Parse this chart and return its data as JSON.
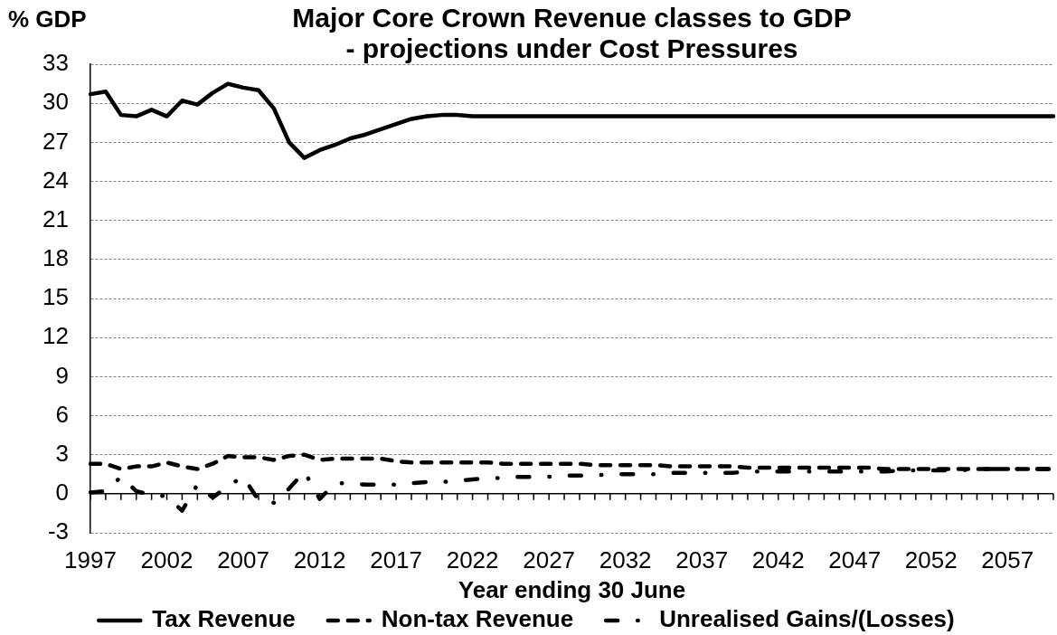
{
  "chart_data": {
    "type": "line",
    "title": "Major Core Crown Revenue classes to GDP",
    "subtitle": "- projections under Cost Pressures",
    "xlabel": "Year ending 30 June",
    "ylabel": "% GDP",
    "categories": [
      "1997",
      null,
      null,
      null,
      null,
      "2002",
      null,
      null,
      null,
      null,
      "2007",
      null,
      null,
      null,
      null,
      "2012",
      null,
      null,
      null,
      null,
      "2017",
      null,
      null,
      null,
      null,
      "2022",
      null,
      null,
      null,
      null,
      "2027",
      null,
      null,
      null,
      null,
      "2032",
      null,
      null,
      null,
      null,
      "2037",
      null,
      null,
      null,
      null,
      "2042",
      null,
      null,
      null,
      null,
      "2047",
      null,
      null,
      null,
      null,
      "2052",
      null,
      null,
      null,
      null,
      "2057",
      null,
      null,
      null
    ],
    "series": [
      {
        "name": "Tax Revenue",
        "color": "#000000",
        "line_style": "solid",
        "values": [
          30.7,
          30.9,
          29.1,
          29.0,
          29.5,
          29.0,
          30.2,
          29.9,
          30.8,
          31.5,
          31.2,
          31.0,
          29.6,
          27.0,
          25.8,
          26.4,
          26.8,
          27.3,
          27.6,
          28.0,
          28.4,
          28.8,
          29.0,
          29.1,
          29.1,
          29.0,
          29.0,
          29.0,
          29.0,
          29.0,
          29.0,
          29.0,
          29.0,
          29.0,
          29.0,
          29.0,
          29.0,
          29.0,
          29.0,
          29.0,
          29.0,
          29.0,
          29.0,
          29.0,
          29.0,
          29.0,
          29.0,
          29.0,
          29.0,
          29.0,
          29.0,
          29.0,
          29.0,
          29.0,
          29.0,
          29.0,
          29.0,
          29.0,
          29.0,
          29.0,
          29.0,
          29.0,
          29.0,
          29.0
        ]
      },
      {
        "name": "Non-tax Revenue",
        "color": "#000000",
        "line_style": "dashed",
        "values": [
          2.3,
          2.3,
          1.9,
          2.1,
          2.1,
          2.4,
          2.1,
          1.9,
          2.3,
          2.9,
          2.8,
          2.8,
          2.6,
          2.9,
          3.0,
          2.6,
          2.7,
          2.7,
          2.7,
          2.7,
          2.5,
          2.4,
          2.4,
          2.4,
          2.4,
          2.4,
          2.4,
          2.3,
          2.3,
          2.3,
          2.3,
          2.3,
          2.3,
          2.2,
          2.2,
          2.2,
          2.2,
          2.2,
          2.1,
          2.1,
          2.1,
          2.1,
          2.1,
          2.0,
          2.0,
          2.0,
          2.0,
          2.0,
          2.0,
          2.0,
          2.0,
          2.0,
          1.9,
          1.9,
          1.9,
          1.9,
          1.9,
          1.9,
          1.9,
          1.9,
          1.9,
          1.9,
          1.9,
          1.9
        ]
      },
      {
        "name": "Unrealised Gains/(Losses)",
        "color": "#000000",
        "line_style": "dashdot",
        "values": [
          0.1,
          0.2,
          1.3,
          0.2,
          -0.1,
          -0.2,
          -1.3,
          0.7,
          -0.3,
          0.6,
          1.3,
          -0.5,
          -0.7,
          0.4,
          1.7,
          -0.4,
          0.8,
          0.8,
          0.7,
          0.7,
          0.7,
          0.8,
          0.9,
          0.9,
          1.0,
          1.1,
          1.2,
          1.2,
          1.3,
          1.3,
          1.3,
          1.4,
          1.4,
          1.4,
          1.5,
          1.5,
          1.5,
          1.5,
          1.6,
          1.6,
          1.6,
          1.6,
          1.6,
          1.7,
          1.7,
          1.7,
          1.7,
          1.7,
          1.7,
          1.7,
          1.7,
          1.7,
          1.7,
          1.8,
          1.8,
          1.8,
          1.8,
          1.8,
          1.9,
          1.9,
          1.9,
          1.9,
          1.9,
          1.9
        ]
      }
    ],
    "ylim": [
      -3,
      33
    ],
    "yticks": [
      -3,
      0,
      3,
      6,
      9,
      12,
      15,
      18,
      21,
      24,
      27,
      30,
      33
    ],
    "grid": "y",
    "legend": "bottom",
    "marker": "none"
  }
}
